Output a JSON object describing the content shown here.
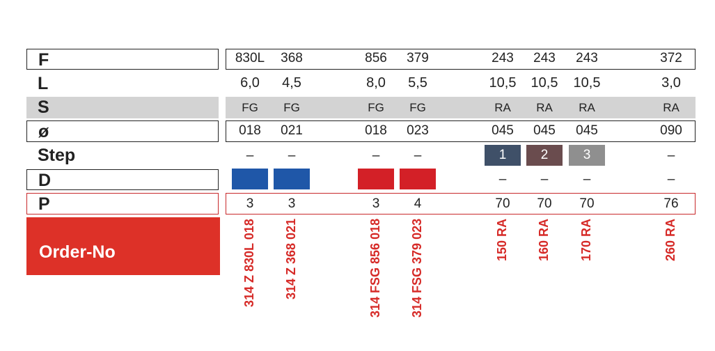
{
  "rows": {
    "F": "F",
    "L": "L",
    "S": "S",
    "o": "ø",
    "step": "Step",
    "D": "D",
    "P": "P"
  },
  "order_label": "Order-No",
  "columns": [
    {
      "F": "830L",
      "L": "6,0",
      "S": "FG",
      "o": "018",
      "step": "–",
      "D": "blue",
      "P": "3",
      "order": "314 Z 830L 018"
    },
    {
      "F": "368",
      "L": "4,5",
      "S": "FG",
      "o": "021",
      "step": "–",
      "D": "blue",
      "P": "3",
      "order": "314 Z 368 021"
    },
    {
      "F": "856",
      "L": "8,0",
      "S": "FG",
      "o": "018",
      "step": "–",
      "D": "red",
      "P": "3",
      "order": "314 FSG 856 018"
    },
    {
      "F": "379",
      "L": "5,5",
      "S": "FG",
      "o": "023",
      "step": "–",
      "D": "red",
      "P": "4",
      "order": "314 FSG 379 023"
    },
    {
      "F": "243",
      "L": "10,5",
      "S": "RA",
      "o": "045",
      "step": "1",
      "D": "–",
      "P": "70",
      "order": "150 RA"
    },
    {
      "F": "243",
      "L": "10,5",
      "S": "RA",
      "o": "045",
      "step": "2",
      "D": "–",
      "P": "70",
      "order": "160 RA"
    },
    {
      "F": "243",
      "L": "10,5",
      "S": "RA",
      "o": "045",
      "step": "3",
      "D": "–",
      "P": "70",
      "order": "170 RA"
    },
    {
      "F": "372",
      "L": "3,0",
      "S": "RA",
      "o": "090",
      "step": "–",
      "D": "–",
      "P": "76",
      "order": "260 RA"
    }
  ],
  "colors": {
    "blue": "#1f57a8",
    "red": "#d32027",
    "accent": "#dd3128",
    "step1": "#3f5068",
    "step2": "#6a4c4e",
    "step3": "#8f8f8f"
  }
}
